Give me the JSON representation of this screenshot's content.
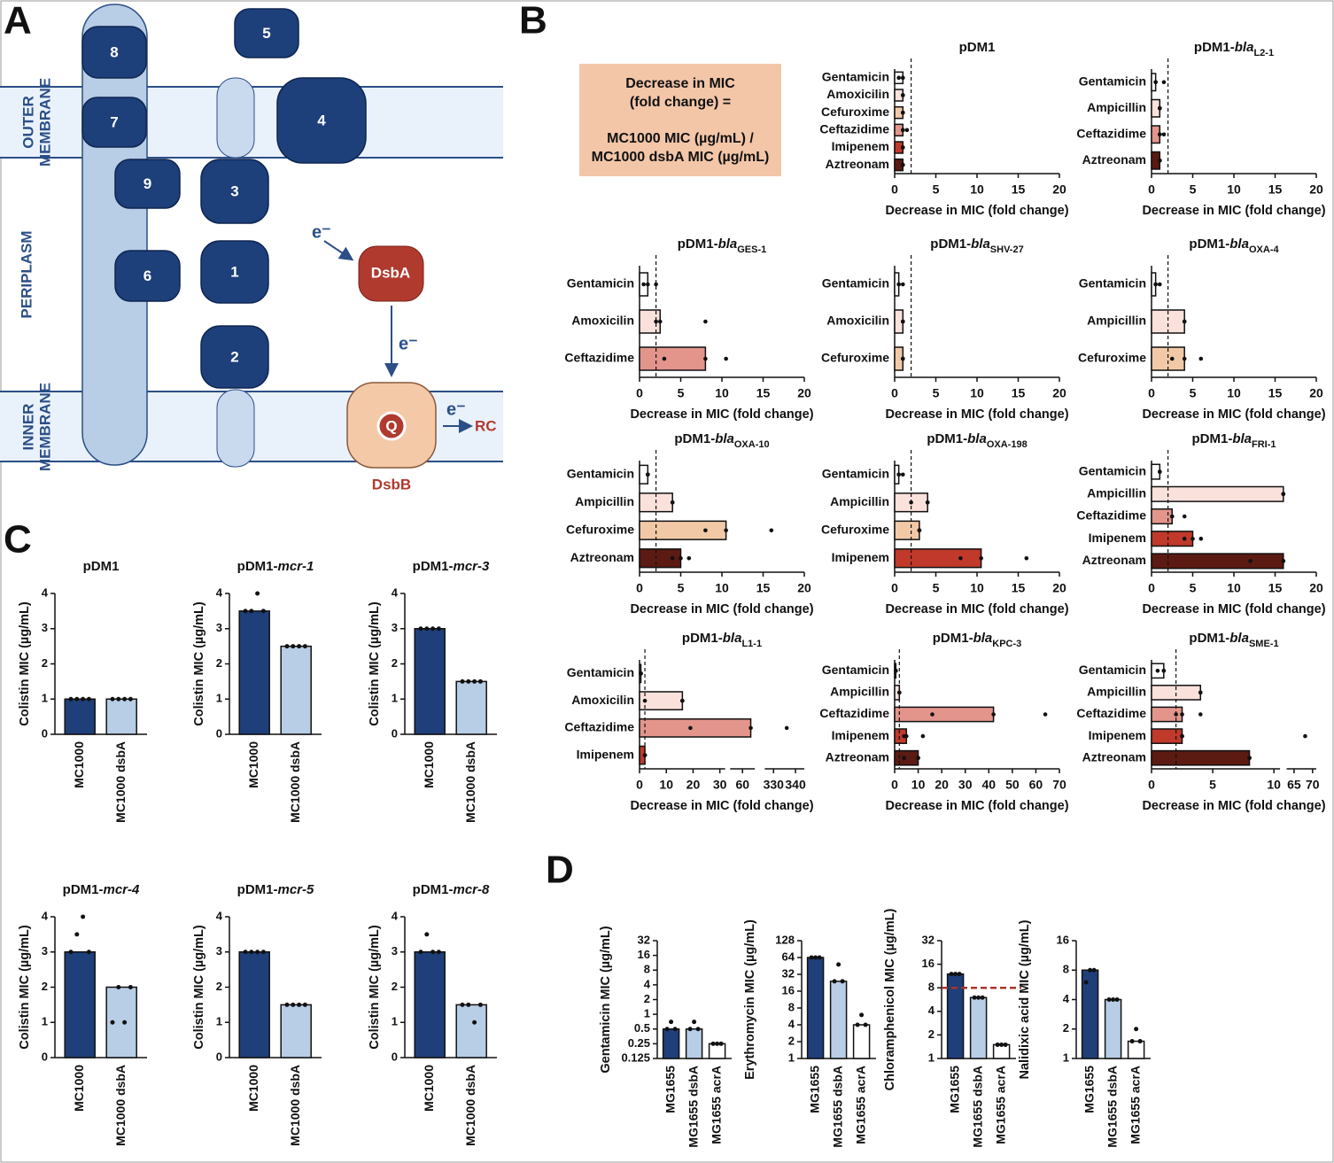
{
  "panel_labels": [
    "A",
    "B",
    "C",
    "D"
  ],
  "diagram": {
    "outer_membrane": [
      "OUTER",
      "MEMBRANE"
    ],
    "periplasm": "PERIPLASM",
    "inner_membrane": [
      "INNER",
      "MEMBRANE"
    ],
    "proteins": [
      "8",
      "5",
      "7",
      "4",
      "9",
      "3",
      "6",
      "1",
      "2"
    ],
    "dsba": "DsbA",
    "dsbb": "DsbB",
    "quinone": "Q",
    "electrons": [
      "e⁻",
      "e⁻",
      "e⁻"
    ],
    "rc": "RC"
  },
  "formula": [
    "Decrease in MIC",
    "(fold change) =",
    "MC1000 MIC (µg/mL) /",
    "MC1000 dsbA MIC (µg/mL)"
  ],
  "chart_data": [
    {
      "type": "bar",
      "orientation": "horizontal",
      "title": [
        "pDM1"
      ],
      "categories": [
        "Gentamicin",
        "Amoxicilin",
        "Cefuroxime",
        "Ceftazidime",
        "Imipenem",
        "Aztreonam"
      ],
      "values": [
        1,
        1,
        1,
        1,
        1,
        1
      ],
      "colors": [
        "#ffffff",
        "#fbe1dc",
        "#f2c9a6",
        "#e3958c",
        "#c0392b",
        "#5b1a12"
      ],
      "points": [
        [
          0.5,
          1,
          1
        ],
        [
          1,
          1,
          1
        ],
        [
          1,
          1,
          1
        ],
        [
          1,
          1,
          1.5
        ],
        [
          1,
          1,
          1
        ],
        [
          1,
          1,
          1
        ]
      ],
      "xlim": [
        0,
        20
      ],
      "xticks": [
        0,
        5,
        10,
        15,
        20
      ],
      "xlabel": "Decrease in MIC (fold change)",
      "threshold": 2
    },
    {
      "type": "bar",
      "orientation": "horizontal",
      "title": [
        "pDM1-",
        "bla",
        "L2-1"
      ],
      "categories": [
        "Gentamicin",
        "Ampicillin",
        "Ceftazidime",
        "Aztreonam"
      ],
      "values": [
        0.5,
        1,
        1,
        1
      ],
      "colors": [
        "#ffffff",
        "#fbe1dc",
        "#e3958c",
        "#5b1a12"
      ],
      "points": [
        [
          0.5,
          0.5,
          1.5
        ],
        [
          1,
          1,
          1
        ],
        [
          1,
          1,
          1.5
        ],
        [
          1,
          1,
          1
        ]
      ],
      "xlim": [
        0,
        20
      ],
      "xticks": [
        0,
        5,
        10,
        15,
        20
      ],
      "xlabel": "Decrease in MIC (fold change)",
      "threshold": 2
    },
    {
      "type": "bar",
      "orientation": "horizontal",
      "title": [
        "pDM1-",
        "bla",
        "GES-1"
      ],
      "categories": [
        "Gentamicin",
        "Amoxicilin",
        "Ceftazidime"
      ],
      "values": [
        1,
        2.5,
        8
      ],
      "colors": [
        "#ffffff",
        "#fbe1dc",
        "#e3958c"
      ],
      "points": [
        [
          0.5,
          1,
          2
        ],
        [
          2,
          2.5,
          8
        ],
        [
          3,
          8,
          10.5
        ]
      ],
      "xlim": [
        0,
        20
      ],
      "xticks": [
        0,
        5,
        10,
        15,
        20
      ],
      "xlabel": "Decrease in MIC (fold change)",
      "threshold": 2
    },
    {
      "type": "bar",
      "orientation": "horizontal",
      "title": [
        "pDM1-",
        "bla",
        "SHV-27"
      ],
      "categories": [
        "Gentamicin",
        "Amoxicilin",
        "Cefuroxime"
      ],
      "values": [
        0.5,
        1,
        1
      ],
      "colors": [
        "#ffffff",
        "#fbe1dc",
        "#f2c9a6"
      ],
      "points": [
        [
          0.5,
          0.5,
          1
        ],
        [
          1,
          1,
          1
        ],
        [
          1,
          1,
          1
        ]
      ],
      "xlim": [
        0,
        20
      ],
      "xticks": [
        0,
        5,
        10,
        15,
        20
      ],
      "xlabel": "Decrease in MIC (fold change)",
      "threshold": 2
    },
    {
      "type": "bar",
      "orientation": "horizontal",
      "title": [
        "pDM1-",
        "bla",
        "OXA-4"
      ],
      "categories": [
        "Gentamicin",
        "Ampicillin",
        "Cefuroxime"
      ],
      "values": [
        0.5,
        4,
        4
      ],
      "colors": [
        "#ffffff",
        "#fbe1dc",
        "#f2c9a6"
      ],
      "points": [
        [
          0.5,
          0.5,
          1
        ],
        [
          4,
          4,
          4
        ],
        [
          2.5,
          4,
          6
        ]
      ],
      "xlim": [
        0,
        20
      ],
      "xticks": [
        0,
        5,
        10,
        15,
        20
      ],
      "xlabel": "Decrease in MIC (fold change)",
      "threshold": 2
    },
    {
      "type": "bar",
      "orientation": "horizontal",
      "title": [
        "pDM1-",
        "bla",
        "OXA-10"
      ],
      "categories": [
        "Gentamicin",
        "Ampicillin",
        "Cefuroxime",
        "Aztreonam"
      ],
      "values": [
        1,
        4,
        10.5,
        5
      ],
      "colors": [
        "#ffffff",
        "#fbe1dc",
        "#f2c9a6",
        "#5b1a12"
      ],
      "points": [
        [
          1,
          1,
          1
        ],
        [
          4,
          4,
          4
        ],
        [
          8,
          10.5,
          16
        ],
        [
          4,
          5,
          6
        ]
      ],
      "xlim": [
        0,
        20
      ],
      "xticks": [
        0,
        5,
        10,
        15,
        20
      ],
      "xlabel": "Decrease in MIC (fold change)",
      "threshold": 2
    },
    {
      "type": "bar",
      "orientation": "horizontal",
      "title": [
        "pDM1-",
        "bla",
        "OXA-198"
      ],
      "categories": [
        "Gentamicin",
        "Ampicillin",
        "Cefuroxime",
        "Imipenem"
      ],
      "values": [
        0.5,
        4,
        3,
        10.5
      ],
      "colors": [
        "#ffffff",
        "#fbe1dc",
        "#f2c9a6",
        "#c0392b"
      ],
      "points": [
        [
          0.5,
          0.5,
          1
        ],
        [
          2,
          4,
          4
        ],
        [
          3,
          3,
          3
        ],
        [
          8,
          10.5,
          16
        ]
      ],
      "xlim": [
        0,
        20
      ],
      "xticks": [
        0,
        5,
        10,
        15,
        20
      ],
      "xlabel": "Decrease in MIC (fold change)",
      "threshold": 2
    },
    {
      "type": "bar",
      "orientation": "horizontal",
      "title": [
        "pDM1-",
        "bla",
        "FRI-1"
      ],
      "categories": [
        "Gentamicin",
        "Ampicillin",
        "Ceftazidime",
        "Imipenem",
        "Aztreonam"
      ],
      "values": [
        1,
        16,
        2.5,
        5,
        16
      ],
      "colors": [
        "#ffffff",
        "#fbe1dc",
        "#e3958c",
        "#c0392b",
        "#5b1a12"
      ],
      "points": [
        [
          1,
          1,
          1
        ],
        [
          16,
          16,
          16
        ],
        [
          2.5,
          2.5,
          4
        ],
        [
          4,
          5,
          6
        ],
        [
          12,
          16,
          16
        ]
      ],
      "xlim": [
        0,
        20
      ],
      "xticks": [
        0,
        5,
        10,
        15,
        20
      ],
      "xlabel": "Decrease in MIC (fold change)",
      "threshold": 2
    },
    {
      "type": "bar",
      "orientation": "horizontal",
      "title": [
        "pDM1-",
        "bla",
        "L1-1"
      ],
      "categories": [
        "Gentamicin",
        "Amoxicilin",
        "Ceftazidime",
        "Imipenem"
      ],
      "values": [
        0.5,
        16,
        64,
        2
      ],
      "colors": [
        "#ffffff",
        "#fbe1dc",
        "#e3958c",
        "#c0392b"
      ],
      "points": [
        [
          0.5,
          0.5,
          0.5
        ],
        [
          2,
          16,
          16
        ],
        [
          19,
          64,
          336
        ],
        [
          2,
          2,
          2
        ]
      ],
      "xsegments": [
        {
          "xlim": [
            0,
            32
          ],
          "xticks": [
            0,
            10,
            20,
            30
          ]
        },
        {
          "xlim": [
            54,
            66
          ],
          "xticks": [
            60
          ]
        },
        {
          "xlim": [
            326,
            344
          ],
          "xticks": [
            330,
            340
          ]
        }
      ],
      "xlabel": "Decrease in MIC (fold change)",
      "threshold": 2
    },
    {
      "type": "bar",
      "orientation": "horizontal",
      "title": [
        "pDM1-",
        "bla",
        "KPC-3"
      ],
      "categories": [
        "Gentamicin",
        "Ampicillin",
        "Ceftazidime",
        "Imipenem",
        "Aztreonam"
      ],
      "values": [
        0.5,
        2,
        42,
        5,
        10
      ],
      "colors": [
        "#ffffff",
        "#fbe1dc",
        "#e3958c",
        "#c0392b",
        "#5b1a12"
      ],
      "points": [
        [
          0.5,
          0.5,
          0.5
        ],
        [
          2,
          2,
          2
        ],
        [
          16,
          42,
          64
        ],
        [
          4,
          5,
          12
        ],
        [
          4,
          10,
          10
        ]
      ],
      "xlim": [
        0,
        70
      ],
      "xticks": [
        0,
        10,
        20,
        30,
        40,
        50,
        60,
        70
      ],
      "xlabel": "Decrease in MIC (fold change)",
      "threshold": 2
    },
    {
      "type": "bar",
      "orientation": "horizontal",
      "title": [
        "pDM1-",
        "bla",
        "SME-1"
      ],
      "categories": [
        "Gentamicin",
        "Ampicillin",
        "Ceftazidime",
        "Imipenem",
        "Aztreonam"
      ],
      "values": [
        1,
        4,
        2.5,
        2.5,
        8
      ],
      "colors": [
        "#ffffff",
        "#fbe1dc",
        "#e3958c",
        "#c0392b",
        "#5b1a12"
      ],
      "points": [
        [
          0.5,
          1,
          1
        ],
        [
          4,
          4,
          4
        ],
        [
          2,
          2.5,
          4
        ],
        [
          2.5,
          2.5,
          68
        ],
        [
          8,
          8,
          8
        ]
      ],
      "xsegments": [
        {
          "xlim": [
            0,
            10.5
          ],
          "xticks": [
            0,
            5,
            10
          ]
        },
        {
          "xlim": [
            63,
            71
          ],
          "xticks": [
            65,
            70
          ]
        }
      ],
      "xlabel": "Decrease in MIC (fold change)",
      "threshold": 2
    },
    {
      "type": "bar",
      "title": [
        "pDM1"
      ],
      "categories": [
        "MC1000",
        "MC1000 dsbA"
      ],
      "values": [
        1,
        1
      ],
      "colors": [
        "#1f3f7a",
        "#b8cde6"
      ],
      "points": [
        [
          1,
          1,
          1,
          1
        ],
        [
          1,
          1,
          1,
          1
        ]
      ],
      "ylim": [
        0,
        4
      ],
      "yticks": [
        0,
        1,
        2,
        3,
        4
      ],
      "ylabel": "Colistin MIC (µg/mL)"
    },
    {
      "type": "bar",
      "title": [
        "pDM1-",
        "mcr-1"
      ],
      "categories": [
        "MC1000",
        "MC1000 dsbA"
      ],
      "values": [
        3.5,
        2.5
      ],
      "colors": [
        "#1f3f7a",
        "#b8cde6"
      ],
      "points": [
        [
          3.5,
          3.5,
          4,
          3.5
        ],
        [
          2.5,
          2.5,
          2.5,
          2.5
        ]
      ],
      "ylim": [
        0,
        4
      ],
      "yticks": [
        0,
        1,
        2,
        3,
        4
      ],
      "ylabel": "Colistin MIC (µg/mL)"
    },
    {
      "type": "bar",
      "title": [
        "pDM1-",
        "mcr-3"
      ],
      "categories": [
        "MC1000",
        "MC1000 dsbA"
      ],
      "values": [
        3,
        1.5
      ],
      "colors": [
        "#1f3f7a",
        "#b8cde6"
      ],
      "points": [
        [
          3,
          3,
          3,
          3
        ],
        [
          1.5,
          1.5,
          1.5,
          1.5
        ]
      ],
      "ylim": [
        0,
        4
      ],
      "yticks": [
        0,
        1,
        2,
        3,
        4
      ],
      "ylabel": "Colistin MIC (µg/mL)"
    },
    {
      "type": "bar",
      "title": [
        "pDM1-",
        "mcr-4"
      ],
      "categories": [
        "MC1000",
        "MC1000 dsbA"
      ],
      "values": [
        3,
        2
      ],
      "colors": [
        "#1f3f7a",
        "#b8cde6"
      ],
      "points": [
        [
          3,
          3.5,
          4,
          3
        ],
        [
          1,
          2,
          1,
          2
        ]
      ],
      "ylim": [
        0,
        4
      ],
      "yticks": [
        0,
        1,
        2,
        3,
        4
      ],
      "ylabel": "Colistin MIC (µg/mL)"
    },
    {
      "type": "bar",
      "title": [
        "pDM1-",
        "mcr-5"
      ],
      "categories": [
        "MC1000",
        "MC1000 dsbA"
      ],
      "values": [
        3,
        1.5
      ],
      "colors": [
        "#1f3f7a",
        "#b8cde6"
      ],
      "points": [
        [
          3,
          3,
          3,
          3
        ],
        [
          1.5,
          1.5,
          1.5,
          1.5
        ]
      ],
      "ylim": [
        0,
        4
      ],
      "yticks": [
        0,
        1,
        2,
        3,
        4
      ],
      "ylabel": "Colistin MIC (µg/mL)"
    },
    {
      "type": "bar",
      "title": [
        "pDM1-",
        "mcr-8"
      ],
      "categories": [
        "MC1000",
        "MC1000 dsbA"
      ],
      "values": [
        3,
        1.5
      ],
      "colors": [
        "#1f3f7a",
        "#b8cde6"
      ],
      "points": [
        [
          3,
          3.5,
          3,
          3
        ],
        [
          1.5,
          1.5,
          1,
          1.5
        ]
      ],
      "ylim": [
        0,
        4
      ],
      "yticks": [
        0,
        1,
        2,
        3,
        4
      ],
      "ylabel": "Colistin MIC (µg/mL)"
    },
    {
      "type": "bar",
      "yscale": "log",
      "categories": [
        "MG1655",
        "MG1655 dsbA",
        "MG1655 acrA"
      ],
      "values": [
        0.5,
        0.5,
        0.25
      ],
      "colors": [
        "#1f3f7a",
        "#b8cde6",
        "#ffffff"
      ],
      "points": [
        [
          0.5,
          0.7,
          0.5
        ],
        [
          0.5,
          0.7,
          0.5
        ],
        [
          0.25,
          0.25,
          0.25
        ]
      ],
      "ylim": [
        0.125,
        32
      ],
      "yticks": [
        0.125,
        0.25,
        0.5,
        1,
        2,
        4,
        8,
        16,
        32
      ],
      "ylabel": "Gentamicin MIC (µg/mL)"
    },
    {
      "type": "bar",
      "yscale": "log",
      "categories": [
        "MG1655",
        "MG1655 dsbA",
        "MG1655 acrA"
      ],
      "values": [
        64,
        24,
        4
      ],
      "colors": [
        "#1f3f7a",
        "#b8cde6",
        "#ffffff"
      ],
      "points": [
        [
          64,
          64,
          64
        ],
        [
          24,
          48,
          24
        ],
        [
          4,
          6,
          4
        ]
      ],
      "ylim": [
        1,
        128
      ],
      "yticks": [
        1,
        2,
        4,
        8,
        16,
        32,
        64,
        128
      ],
      "ylabel": "Erythromycin MIC (µg/mL)"
    },
    {
      "type": "bar",
      "yscale": "log",
      "categories": [
        "MG1655",
        "MG1655 dsbA",
        "MG1655 acrA"
      ],
      "values": [
        12,
        6,
        1.5
      ],
      "colors": [
        "#1f3f7a",
        "#b8cde6",
        "#ffffff"
      ],
      "points": [
        [
          12,
          12,
          12
        ],
        [
          6,
          6,
          6
        ],
        [
          1.5,
          1.5,
          1.5
        ]
      ],
      "ylim": [
        1,
        32
      ],
      "yticks": [
        1,
        2,
        4,
        8,
        16,
        32
      ],
      "ylabel": "Chloramphenicol MIC (µg/mL)",
      "reference_line": 8,
      "reference_color": "#a8352b"
    },
    {
      "type": "bar",
      "yscale": "log",
      "categories": [
        "MG1655",
        "MG1655 dsbA",
        "MG1655 acrA"
      ],
      "values": [
        8,
        4,
        1.5
      ],
      "colors": [
        "#1f3f7a",
        "#b8cde6",
        "#ffffff"
      ],
      "points": [
        [
          6,
          8,
          8
        ],
        [
          4,
          4,
          4
        ],
        [
          1.5,
          2,
          1.5
        ]
      ],
      "ylim": [
        1,
        16
      ],
      "yticks": [
        1,
        2,
        4,
        8,
        16
      ],
      "ylabel": "Nalidixic acid MIC (µg/mL)"
    }
  ]
}
